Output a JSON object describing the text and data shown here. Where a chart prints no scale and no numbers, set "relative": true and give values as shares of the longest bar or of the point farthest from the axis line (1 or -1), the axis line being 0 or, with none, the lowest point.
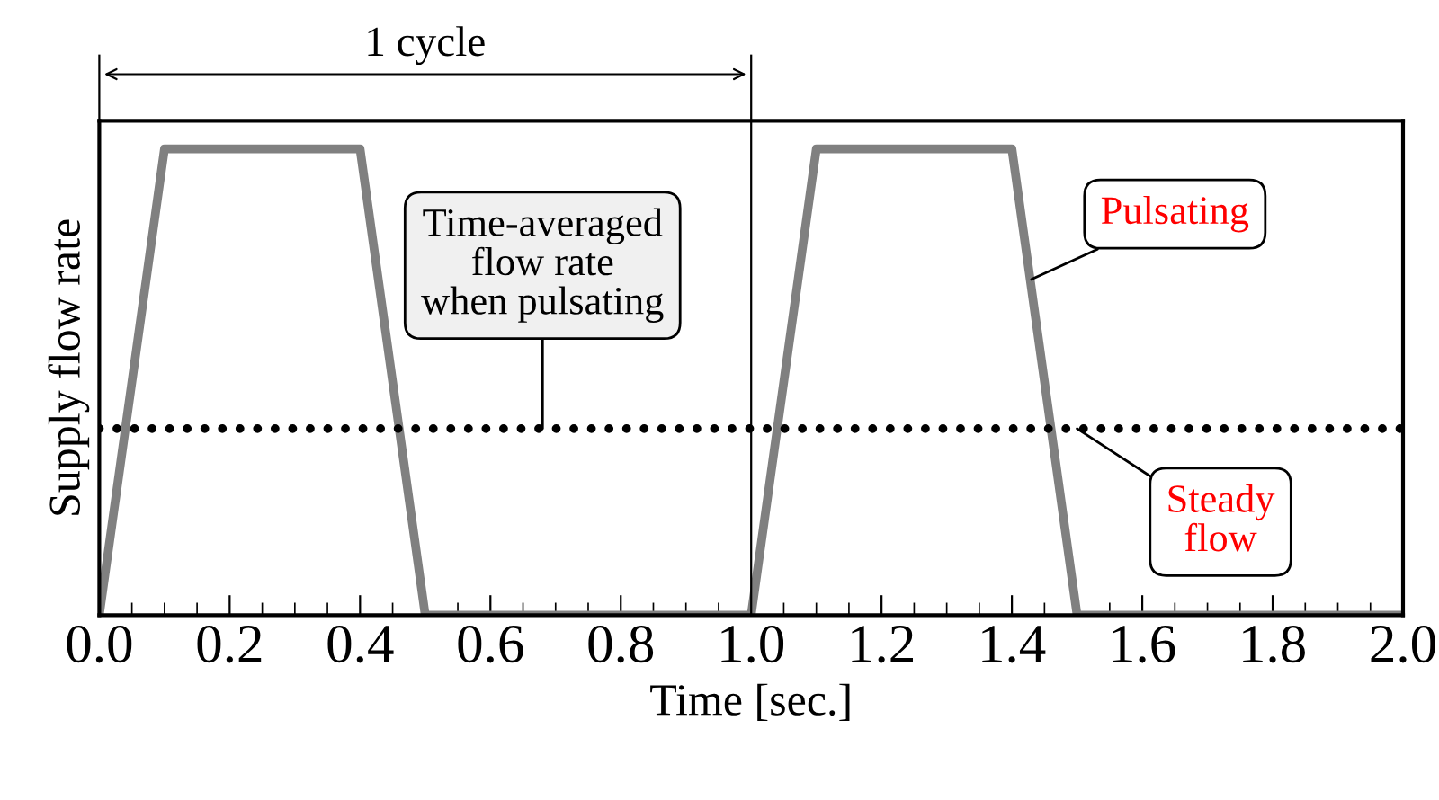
{
  "chart_data": {
    "type": "line",
    "relative": true,
    "xlabel": "Time [sec.]",
    "ylabel": "Supply flow rate",
    "xlim": [
      0,
      2
    ],
    "xticks": [
      {
        "value": 0,
        "label": "0.0"
      },
      {
        "value": 0.2,
        "label": "0.2"
      },
      {
        "value": 0.4,
        "label": "0.4"
      },
      {
        "value": 0.6,
        "label": "0.6"
      },
      {
        "value": 0.8,
        "label": "0.8"
      },
      {
        "value": 1,
        "label": "1.0"
      },
      {
        "value": 1.2,
        "label": "1.2"
      },
      {
        "value": 1.4,
        "label": "1.4"
      },
      {
        "value": 1.6,
        "label": "1.6"
      },
      {
        "value": 1.8,
        "label": "1.8"
      },
      {
        "value": 2,
        "label": "2.0"
      }
    ],
    "series": [
      {
        "color": "#808080",
        "line_style": "solid",
        "x": [
          0,
          0.1,
          0.4,
          0.5,
          1.0,
          1.1,
          1.4,
          1.5,
          2.0
        ],
        "values": [
          0,
          1,
          1,
          0,
          0,
          1,
          1,
          0,
          0
        ]
      },
      {
        "color": "#000000",
        "line_style": "dotted",
        "x": [
          0,
          2
        ],
        "values": [
          0.4,
          0.4
        ]
      }
    ],
    "ref_lines": [
      {
        "axis": "x",
        "value": 1.0,
        "label": "1 cycle",
        "color": "#000000"
      }
    ],
    "annotations": [
      {
        "text": "Time-averaged\nflow rate\nwhen pulsating",
        "x": 0.68,
        "y": 0.4
      },
      {
        "text": "Pulsating",
        "x": 1.43,
        "y": 0.72
      },
      {
        "text": "Steady\nflow",
        "x": 1.5,
        "y": 0.4
      }
    ],
    "grid": false
  }
}
